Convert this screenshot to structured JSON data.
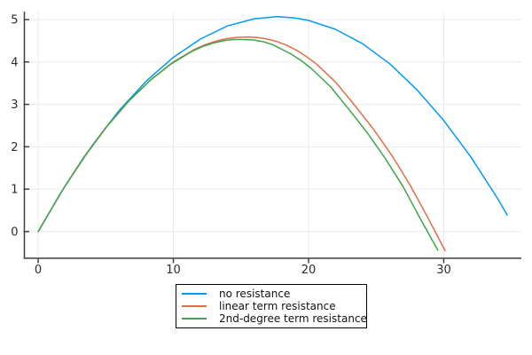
{
  "chart_data": {
    "type": "line",
    "title": "",
    "xlabel": "",
    "ylabel": "",
    "xlim": [
      -1.02,
      35.74
    ],
    "ylim": [
      -0.63,
      5.19
    ],
    "xticks": [
      0,
      10,
      20,
      30
    ],
    "yticks": [
      0,
      1,
      2,
      3,
      4,
      5
    ],
    "grid": true,
    "background": "#ffffff",
    "grid_color": "#eaeaea",
    "axis_color": "#3e3e44",
    "tick_label_color": "#2b2b30",
    "legend_position": "outside-bottom-center",
    "series": [
      {
        "name": "no resistance",
        "color": "#009AFA",
        "points": [
          [
            0,
            0
          ],
          [
            2,
            1.08
          ],
          [
            4,
            2.03
          ],
          [
            6,
            2.86
          ],
          [
            8,
            3.55
          ],
          [
            10,
            4.11
          ],
          [
            12,
            4.54
          ],
          [
            14,
            4.85
          ],
          [
            16,
            5.02
          ],
          [
            17.7,
            5.07
          ],
          [
            19,
            5.04
          ],
          [
            20,
            4.98
          ],
          [
            22,
            4.77
          ],
          [
            24,
            4.43
          ],
          [
            26,
            3.96
          ],
          [
            28,
            3.35
          ],
          [
            30,
            2.62
          ],
          [
            32,
            1.76
          ],
          [
            34,
            0.77
          ],
          [
            34.7,
            0.39
          ]
        ]
      },
      {
        "name": "linear term resistance",
        "color": "#E26E46",
        "points": [
          [
            0,
            0
          ],
          [
            1.73,
            0.94
          ],
          [
            3.43,
            1.77
          ],
          [
            5.11,
            2.49
          ],
          [
            6.77,
            3.1
          ],
          [
            8.4,
            3.6
          ],
          [
            10,
            4
          ],
          [
            11.58,
            4.3
          ],
          [
            12.36,
            4.41
          ],
          [
            13.14,
            4.49
          ],
          [
            13.91,
            4.55
          ],
          [
            14.67,
            4.58
          ],
          [
            15.43,
            4.59
          ],
          [
            16.19,
            4.58
          ],
          [
            16.93,
            4.54
          ],
          [
            17.68,
            4.48
          ],
          [
            18.41,
            4.39
          ],
          [
            19.14,
            4.27
          ],
          [
            19.87,
            4.12
          ],
          [
            20.59,
            3.95
          ],
          [
            22.01,
            3.52
          ],
          [
            23.41,
            2.98
          ],
          [
            24.79,
            2.42
          ],
          [
            26.15,
            1.8
          ],
          [
            27.5,
            1.1
          ],
          [
            28.82,
            0.33
          ],
          [
            30.1,
            -0.45
          ]
        ]
      },
      {
        "name": "2nd-degree term resistance",
        "color": "#3EA44E",
        "points": [
          [
            0,
            0
          ],
          [
            1.7,
            0.93
          ],
          [
            3.37,
            1.75
          ],
          [
            5.02,
            2.46
          ],
          [
            6.65,
            3.06
          ],
          [
            8.25,
            3.56
          ],
          [
            9.82,
            3.95
          ],
          [
            11.37,
            4.25
          ],
          [
            12.14,
            4.36
          ],
          [
            12.9,
            4.44
          ],
          [
            13.66,
            4.5
          ],
          [
            14.41,
            4.53
          ],
          [
            15.15,
            4.53
          ],
          [
            15.9,
            4.52
          ],
          [
            16.63,
            4.48
          ],
          [
            17.36,
            4.41
          ],
          [
            18.08,
            4.29
          ],
          [
            18.8,
            4.17
          ],
          [
            19.51,
            4.02
          ],
          [
            20.22,
            3.84
          ],
          [
            21.61,
            3.42
          ],
          [
            22.99,
            2.88
          ],
          [
            24.34,
            2.33
          ],
          [
            25.68,
            1.72
          ],
          [
            27.01,
            1.05
          ],
          [
            28.3,
            0.28
          ],
          [
            29.56,
            -0.44
          ]
        ]
      }
    ]
  }
}
